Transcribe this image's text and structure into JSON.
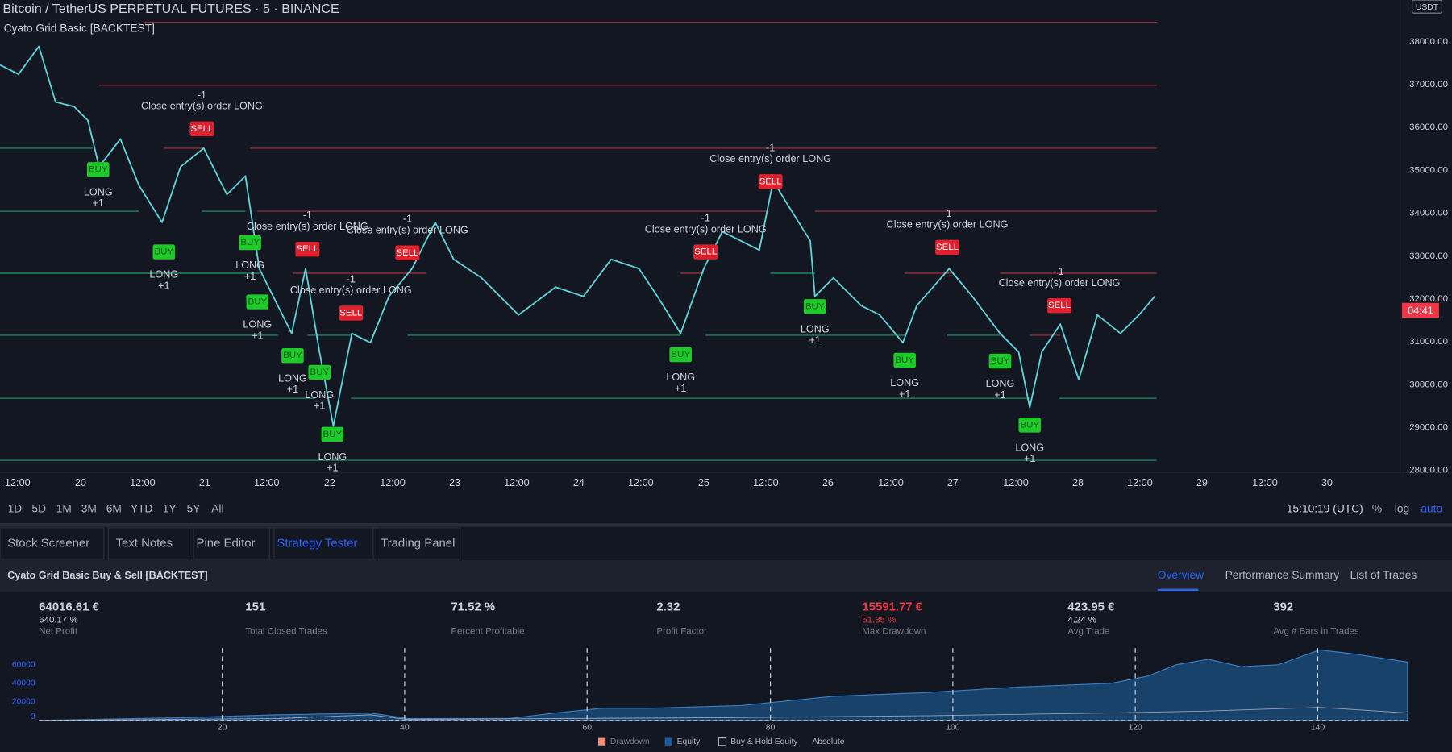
{
  "header": {
    "symbol": "Bitcoin / TetherUS PERPETUAL FUTURES · 5 · BINANCE",
    "indicator": "Cyato Grid Basic [BACKTEST]",
    "currency": "USDT"
  },
  "price_axis": {
    "labels": [
      "38000.00",
      "37000.00",
      "36000.00",
      "35000.00",
      "34000.00",
      "33000.00",
      "32000.00",
      "31000.00",
      "30000.00",
      "29000.00",
      "28000.00"
    ],
    "last_price": "04:41"
  },
  "time_axis": {
    "labels": [
      "12:00",
      "20",
      "12:00",
      "21",
      "12:00",
      "22",
      "12:00",
      "23",
      "12:00",
      "24",
      "12:00",
      "25",
      "12:00",
      "26",
      "12:00",
      "27",
      "12:00",
      "28",
      "12:00",
      "29",
      "12:00",
      "30"
    ]
  },
  "range_buttons": [
    "1D",
    "5D",
    "1M",
    "3M",
    "6M",
    "YTD",
    "1Y",
    "5Y",
    "All"
  ],
  "clock": "15:10:19 (UTC)",
  "scale_options": [
    "%",
    "log",
    "auto"
  ],
  "tabs": [
    "Stock Screener",
    "Text Notes",
    "Pine Editor",
    "Strategy Tester",
    "Trading Panel"
  ],
  "active_tab": 3,
  "signals": [
    {
      "tag": "BUY",
      "side": "LONG",
      "qty": "+1"
    },
    {
      "tag": "BUY",
      "side": "LONG",
      "qty": "+1"
    },
    {
      "tag": "BUY",
      "side": "LONG",
      "qty": "+1"
    },
    {
      "tag": "BUY",
      "side": "LONG",
      "qty": "+1"
    },
    {
      "tag": "BUY",
      "side": "LONG",
      "qty": "+1"
    },
    {
      "tag": "BUY",
      "side": "LONG",
      "qty": "+1"
    },
    {
      "tag": "BUY",
      "side": "LONG",
      "qty": "+1"
    },
    {
      "tag": "BUY",
      "side": "LONG",
      "qty": "+1"
    },
    {
      "tag": "BUY",
      "side": "LONG",
      "qty": "+1"
    },
    {
      "tag": "BUY",
      "side": "LONG",
      "qty": "+1"
    },
    {
      "tag": "BUY",
      "side": "LONG",
      "qty": "+1"
    },
    {
      "tag": "BUY",
      "side": "LONG",
      "qty": "+1"
    },
    {
      "tag": "SELL",
      "note": "Close entry(s) order LONG",
      "qty": "-1"
    },
    {
      "tag": "SELL",
      "note": "Close entry(s) order LONG",
      "qty": "-1"
    },
    {
      "tag": "SELL",
      "note": "Close entry(s) order LONG",
      "qty": "-1"
    },
    {
      "tag": "SELL",
      "note": "Close entry(s) order LONG",
      "qty": "-1"
    },
    {
      "tag": "SELL",
      "note": "Close entry(s) order LONG",
      "qty": "-1"
    },
    {
      "tag": "SELL",
      "note": "Close entry(s) order LONG",
      "qty": "-1"
    },
    {
      "tag": "SELL",
      "note": "Close entry(s) order LONG",
      "qty": "-1"
    },
    {
      "tag": "SELL",
      "note": "Close entry(s) order LONG",
      "qty": "-1"
    }
  ],
  "strategy": {
    "name": "Cyato Grid Basic Buy & Sell [BACKTEST]",
    "views": [
      "Overview",
      "Performance Summary",
      "List of Trades"
    ],
    "stats": [
      {
        "value": "64016.61 €",
        "sub": "640.17 %",
        "label": "Net Profit"
      },
      {
        "value": "151",
        "label": "Total Closed Trades"
      },
      {
        "value": "71.52 %",
        "label": "Percent Profitable"
      },
      {
        "value": "2.32",
        "label": "Profit Factor"
      },
      {
        "value": "15591.77 €",
        "sub": "51.35 %",
        "label": "Max Drawdown",
        "negative": true
      },
      {
        "value": "423.95 €",
        "sub": "4.24 %",
        "label": "Avg Trade"
      },
      {
        "value": "392",
        "label": "Avg # Bars in Trades"
      }
    ],
    "equity_y_labels": [
      "60000",
      "40000",
      "20000",
      "0"
    ],
    "equity_x_labels": [
      "20",
      "40",
      "60",
      "80",
      "100",
      "120",
      "140"
    ],
    "legend": [
      "Drawdown",
      "Equity",
      "Buy & Hold Equity",
      "Absolute"
    ]
  }
}
